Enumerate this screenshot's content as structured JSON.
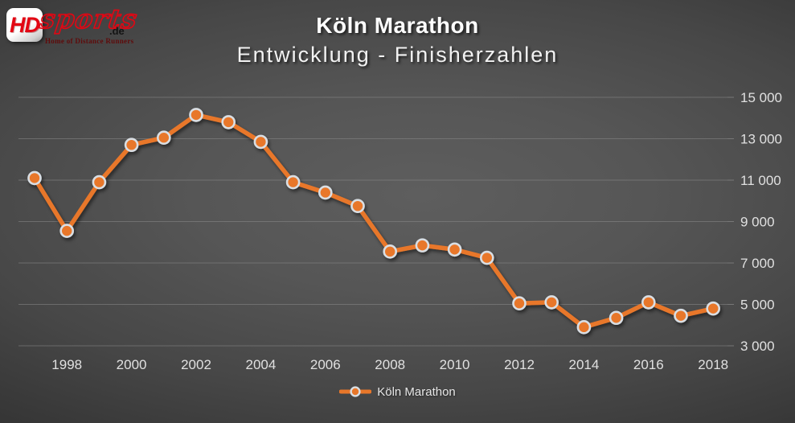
{
  "logo": {
    "hd": "HD",
    "sports": "sports",
    "de": ".de",
    "tagline": "Home of Distance Runners"
  },
  "chart_data": {
    "type": "line",
    "title": "Köln Marathon",
    "subtitle": "Entwicklung - Finisherzahlen",
    "grid": true,
    "legend_position": "bottom",
    "ylim": [
      3000,
      15000
    ],
    "ytick_step": 2000,
    "y_tick_values": [
      3000,
      5000,
      7000,
      9000,
      11000,
      13000,
      15000
    ],
    "y_tick_labels": [
      "3 000",
      "5 000",
      "7 000",
      "9 000",
      "11 000",
      "13 000",
      "15 000"
    ],
    "x_tick_values": [
      1998,
      2000,
      2002,
      2004,
      2006,
      2008,
      2010,
      2012,
      2014,
      2016,
      2018
    ],
    "x_tick_labels": [
      "1998",
      "2000",
      "2002",
      "2004",
      "2006",
      "2008",
      "2010",
      "2012",
      "2014",
      "2016",
      "2018"
    ],
    "x": [
      1997,
      1998,
      1999,
      2000,
      2001,
      2002,
      2003,
      2004,
      2005,
      2006,
      2007,
      2008,
      2009,
      2010,
      2011,
      2012,
      2013,
      2014,
      2015,
      2016,
      2017,
      2018
    ],
    "series": [
      {
        "name": "Köln Marathon",
        "color": "#E8772A",
        "marker_ring": "#D9DEE3",
        "values": [
          11100,
          8550,
          10900,
          12700,
          13050,
          14150,
          13800,
          12850,
          10900,
          10400,
          9750,
          7550,
          7850,
          7650,
          7250,
          5050,
          5100,
          3900,
          4350,
          5100,
          4450,
          4800
        ]
      }
    ],
    "colors": {
      "background_center": "#5c5c5c",
      "background_edge": "#1c1c1c",
      "gridline": "#8a8a8a",
      "axis_text": "#e0e0e0",
      "title_text": "#ffffff"
    }
  }
}
